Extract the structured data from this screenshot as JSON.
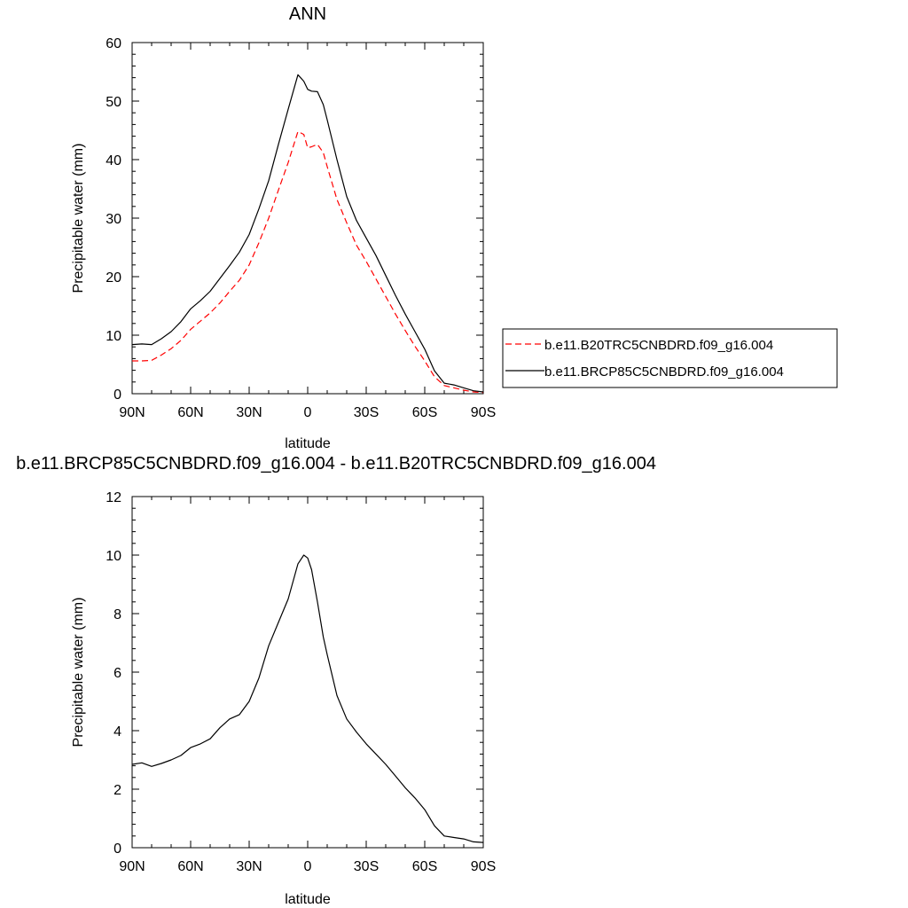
{
  "chart_data": [
    {
      "type": "line",
      "title": "ANN",
      "xlabel": "latitude",
      "ylabel": "Precipitable water (mm)",
      "xlim": [
        90,
        -90
      ],
      "ylim": [
        0,
        60
      ],
      "x_ticks": [
        {
          "value": 90,
          "label": "90N"
        },
        {
          "value": 60,
          "label": "60N"
        },
        {
          "value": 30,
          "label": "30N"
        },
        {
          "value": 0,
          "label": "0"
        },
        {
          "value": -30,
          "label": "30S"
        },
        {
          "value": -60,
          "label": "60S"
        },
        {
          "value": -90,
          "label": "90S"
        }
      ],
      "y_ticks": [
        0,
        10,
        20,
        30,
        40,
        50,
        60
      ],
      "legend_position": "right",
      "series": [
        {
          "name": "b.e11.B20TRC5CNBDRD.f09_g16.004",
          "color": "#ff0000",
          "dash": "dashed",
          "x": [
            90,
            85,
            80,
            75,
            70,
            65,
            60,
            55,
            50,
            45,
            40,
            35,
            30,
            25,
            20,
            15,
            10,
            5,
            2,
            0,
            -2,
            -5,
            -8,
            -10,
            -15,
            -20,
            -25,
            -30,
            -35,
            -40,
            -45,
            -50,
            -55,
            -60,
            -65,
            -70,
            -75,
            -80,
            -85,
            -90
          ],
          "values": [
            5.6,
            5.6,
            5.7,
            6.6,
            7.7,
            9.1,
            11.0,
            12.4,
            13.8,
            15.5,
            17.5,
            19.4,
            22.0,
            25.8,
            30.0,
            34.8,
            39.5,
            44.8,
            44.3,
            42.0,
            42.2,
            42.6,
            41.2,
            38.8,
            33.2,
            29.2,
            25.4,
            22.6,
            19.6,
            16.6,
            13.6,
            10.8,
            8.1,
            5.6,
            2.9,
            1.4,
            1.0,
            0.6,
            0.3,
            0.2
          ]
        },
        {
          "name": "b.e11.BRCP85C5CNBDRD.f09_g16.004",
          "color": "#000000",
          "dash": "solid",
          "x": [
            90,
            85,
            80,
            75,
            70,
            65,
            60,
            55,
            50,
            45,
            40,
            35,
            30,
            25,
            20,
            15,
            10,
            5,
            2,
            0,
            -2,
            -5,
            -8,
            -10,
            -15,
            -20,
            -25,
            -30,
            -35,
            -40,
            -45,
            -50,
            -55,
            -60,
            -65,
            -70,
            -75,
            -80,
            -85,
            -90
          ],
          "values": [
            8.4,
            8.5,
            8.4,
            9.4,
            10.6,
            12.3,
            14.5,
            15.9,
            17.5,
            19.7,
            21.9,
            24.2,
            27.2,
            31.6,
            36.4,
            42.6,
            48.6,
            54.5,
            53.4,
            52.0,
            51.7,
            51.6,
            49.4,
            46.8,
            40.0,
            33.7,
            29.6,
            26.6,
            23.6,
            20.2,
            16.8,
            13.6,
            10.6,
            7.6,
            3.9,
            1.8,
            1.5,
            1.0,
            0.5,
            0.3
          ]
        }
      ]
    },
    {
      "type": "line",
      "title": "b.e11.BRCP85C5CNBDRD.f09_g16.004 - b.e11.B20TRC5CNBDRD.f09_g16.004",
      "xlabel": "latitude",
      "ylabel": "Precipitable water (mm)",
      "xlim": [
        90,
        -90
      ],
      "ylim": [
        0,
        12
      ],
      "x_ticks": [
        {
          "value": 90,
          "label": "90N"
        },
        {
          "value": 60,
          "label": "60N"
        },
        {
          "value": 30,
          "label": "30N"
        },
        {
          "value": 0,
          "label": "0"
        },
        {
          "value": -30,
          "label": "30S"
        },
        {
          "value": -60,
          "label": "60S"
        },
        {
          "value": -90,
          "label": "90S"
        }
      ],
      "y_ticks": [
        0,
        2,
        4,
        6,
        8,
        10,
        12
      ],
      "series": [
        {
          "color": "#000000",
          "dash": "solid",
          "x": [
            90,
            85,
            80,
            75,
            70,
            65,
            60,
            55,
            50,
            45,
            40,
            35,
            30,
            25,
            20,
            15,
            10,
            5,
            2,
            0,
            -2,
            -5,
            -8,
            -10,
            -15,
            -20,
            -25,
            -30,
            -35,
            -40,
            -45,
            -50,
            -55,
            -60,
            -65,
            -70,
            -75,
            -80,
            -85,
            -90
          ],
          "values": [
            2.85,
            2.9,
            2.78,
            2.88,
            3.0,
            3.15,
            3.42,
            3.55,
            3.72,
            4.1,
            4.4,
            4.55,
            5.0,
            5.8,
            6.9,
            7.7,
            8.5,
            9.7,
            10.0,
            9.9,
            9.5,
            8.4,
            7.2,
            6.6,
            5.2,
            4.4,
            3.95,
            3.55,
            3.2,
            2.85,
            2.45,
            2.05,
            1.7,
            1.3,
            0.75,
            0.4,
            0.35,
            0.3,
            0.2,
            0.18
          ]
        }
      ]
    }
  ]
}
